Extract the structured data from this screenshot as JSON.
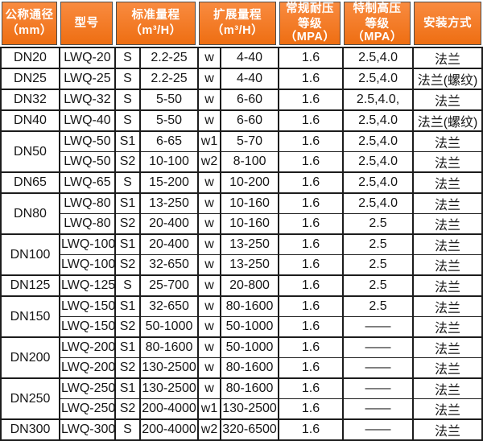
{
  "table": {
    "colors": {
      "header_orange_top": "#f98b40",
      "header_orange_bottom": "#ee6e12",
      "header_outline": "#4d4d4d",
      "body_border": "#1c1c1c",
      "body_text": "#161616",
      "header_text": "#ffffff"
    },
    "header": [
      {
        "lines": [
          "公称通径",
          "（mm）"
        ]
      },
      {
        "lines": [
          "型号"
        ]
      },
      {
        "lines": [
          "标准量程",
          "（m³/H）"
        ]
      },
      {
        "lines": [
          "扩展量程",
          "（m³/H）"
        ]
      },
      {
        "lines": [
          "常规耐压",
          "等级（MPA）"
        ]
      },
      {
        "lines": [
          "特制高压",
          "等级（MPA）"
        ]
      },
      {
        "lines": [
          "安装方式"
        ]
      }
    ],
    "rows": [
      {
        "dn": "DN20",
        "dn_rowspan": 1,
        "model": "LWQ-20",
        "std_code": "S",
        "std_range": "2.2-25",
        "ext_code": "w",
        "ext_range": "4-40",
        "mpa_regular": "1.6",
        "mpa_high": "2.5,4.0",
        "install": "法兰",
        "sub": false
      },
      {
        "dn": "DN25",
        "dn_rowspan": 1,
        "model": "LWQ-25",
        "std_code": "S",
        "std_range": "2.2-25",
        "ext_code": "w",
        "ext_range": "4-40",
        "mpa_regular": "1.6",
        "mpa_high": "2.5,4.0",
        "install": "法兰(螺纹)",
        "sub": false
      },
      {
        "dn": "DN32",
        "dn_rowspan": 1,
        "model": "LWQ-32",
        "std_code": "S",
        "std_range": "5-50",
        "ext_code": "w",
        "ext_range": "6-60",
        "mpa_regular": "1.6",
        "mpa_high": "2.5,4.0,",
        "install": "法兰",
        "sub": false
      },
      {
        "dn": "DN40",
        "dn_rowspan": 1,
        "model": "LWQ-40",
        "std_code": "S",
        "std_range": "5-50",
        "ext_code": "w",
        "ext_range": "6-60",
        "mpa_regular": "1.6",
        "mpa_high": "2.5,4.0",
        "install": "法兰(螺纹)",
        "sub": false
      },
      {
        "dn": "DN50",
        "dn_rowspan": 2,
        "model": "LWQ-50",
        "std_code": "S1",
        "std_range": "6-65",
        "ext_code": "w1",
        "ext_range": "5-70",
        "mpa_regular": "1.6",
        "mpa_high": "2.5,4.0",
        "install": "法兰",
        "sub": false
      },
      {
        "dn": null,
        "dn_rowspan": 0,
        "model": "LWQ-50",
        "std_code": "S2",
        "std_range": "10-100",
        "ext_code": "w2",
        "ext_range": "8-100",
        "mpa_regular": "1.6",
        "mpa_high": "2.5,4.0",
        "install": "法兰",
        "sub": true
      },
      {
        "dn": "DN65",
        "dn_rowspan": 1,
        "model": "LWQ-65",
        "std_code": "S",
        "std_range": "15-200",
        "ext_code": "w",
        "ext_range": "10-200",
        "mpa_regular": "1.6",
        "mpa_high": "2.5,4.0",
        "install": "法兰",
        "sub": false
      },
      {
        "dn": "DN80",
        "dn_rowspan": 2,
        "model": "LWQ-80",
        "std_code": "S1",
        "std_range": "13-250",
        "ext_code": "w",
        "ext_range": "10-160",
        "mpa_regular": "1.6",
        "mpa_high": "2.5,4.0",
        "install": "法兰",
        "sub": false
      },
      {
        "dn": null,
        "dn_rowspan": 0,
        "model": "LWQ-80",
        "std_code": "S2",
        "std_range": "20-400",
        "ext_code": "w",
        "ext_range": "10-160",
        "mpa_regular": "1.6",
        "mpa_high": "2.5",
        "install": "法兰",
        "sub": true
      },
      {
        "dn": "DN100",
        "dn_rowspan": 2,
        "model": "LWQ-100",
        "std_code": "S1",
        "std_range": "20-400",
        "ext_code": "w",
        "ext_range": "13-250",
        "mpa_regular": "1.6",
        "mpa_high": "2.5",
        "install": "法兰",
        "sub": false
      },
      {
        "dn": null,
        "dn_rowspan": 0,
        "model": "LWQ-100",
        "std_code": "S2",
        "std_range": "32-650",
        "ext_code": "w",
        "ext_range": "13-250",
        "mpa_regular": "1.6",
        "mpa_high": "2.5",
        "install": "法兰",
        "sub": true
      },
      {
        "dn": "DN125",
        "dn_rowspan": 1,
        "model": "LWQ-125",
        "std_code": "S",
        "std_range": "25-700",
        "ext_code": "w",
        "ext_range": "20-800",
        "mpa_regular": "1.6",
        "mpa_high": "2.5",
        "install": "法兰",
        "sub": false
      },
      {
        "dn": "DN150",
        "dn_rowspan": 2,
        "model": "LWQ-150",
        "std_code": "S1",
        "std_range": "32-650",
        "ext_code": "w",
        "ext_range": "80-1600",
        "mpa_regular": "1.6",
        "mpa_high": "2.5",
        "install": "法兰",
        "sub": false
      },
      {
        "dn": null,
        "dn_rowspan": 0,
        "model": "LWQ-150",
        "std_code": "S2",
        "std_range": "50-1000",
        "ext_code": "w",
        "ext_range": "50-1000",
        "mpa_regular": "1.6",
        "mpa_high": "——",
        "install": "法兰",
        "sub": true
      },
      {
        "dn": "DN200",
        "dn_rowspan": 2,
        "model": "LWQ-200",
        "std_code": "S1",
        "std_range": "80-1600",
        "ext_code": "w",
        "ext_range": "50-1000",
        "mpa_regular": "1.6",
        "mpa_high": "——",
        "install": "法兰",
        "sub": false
      },
      {
        "dn": null,
        "dn_rowspan": 0,
        "model": "LWQ-200",
        "std_code": "S2",
        "std_range": "130-2500",
        "ext_code": "w",
        "ext_range": "80-1600",
        "mpa_regular": "1.6",
        "mpa_high": "——",
        "install": "法兰",
        "sub": true
      },
      {
        "dn": "DN250",
        "dn_rowspan": 2,
        "model": "LWQ-250",
        "std_code": "S1",
        "std_range": "130-2500",
        "ext_code": "w",
        "ext_range": "80-1600",
        "mpa_regular": "1.6",
        "mpa_high": "——",
        "install": "法兰",
        "sub": false
      },
      {
        "dn": null,
        "dn_rowspan": 0,
        "model": "LWQ-250",
        "std_code": "S2",
        "std_range": "200-4000",
        "ext_code": "w1",
        "ext_range": "130-2500",
        "mpa_regular": "1.6",
        "mpa_high": "——",
        "install": "法兰",
        "sub": true
      },
      {
        "dn": "DN300",
        "dn_rowspan": 1,
        "model": "LWQ-300",
        "std_code": "S",
        "std_range": "200-4000",
        "ext_code": "w2",
        "ext_range": "320-6500",
        "mpa_regular": "1.6",
        "mpa_high": "——",
        "install": "法兰",
        "sub": false
      }
    ]
  }
}
